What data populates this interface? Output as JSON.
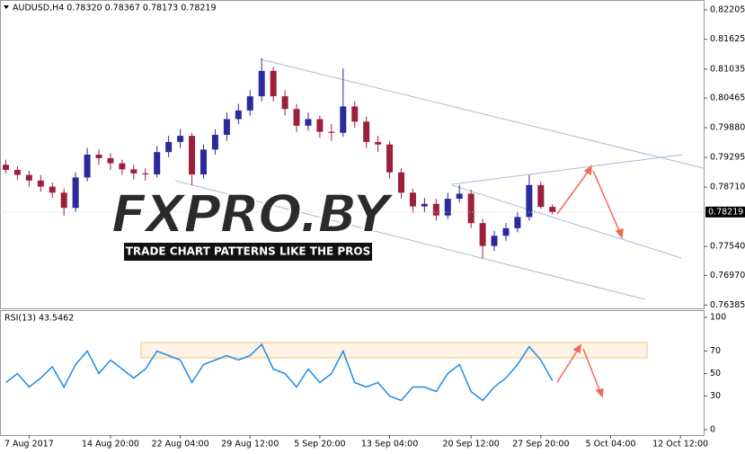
{
  "chart_data": [
    {
      "type": "candlestick",
      "title": "AUDUSD,H4  0.78320 0.78367 0.78173 0.78219",
      "xlim": [
        -0.5,
        60
      ],
      "ylim": [
        0.7632,
        0.8238
      ],
      "yticks": [
        0.82205,
        0.81625,
        0.81035,
        0.80465,
        {
          "value": 0.7988,
          "label": "0.79880"
        },
        0.79295,
        {
          "value": 0.7871,
          "label": "0.78710"
        },
        {
          "value": 0.7754,
          "label": "0.77540"
        },
        {
          "value": 0.7697,
          "label": "0.76970"
        },
        0.76385
      ],
      "open": [
        0.7915,
        0.7905,
        0.7895,
        0.7884,
        0.7872,
        0.786,
        0.783,
        0.789,
        0.7935,
        0.7928,
        0.7918,
        0.7906,
        0.7898,
        0.7896,
        0.794,
        0.796,
        0.7972,
        0.7896,
        0.7945,
        0.7974,
        0.8005,
        0.8022,
        0.805,
        0.81,
        0.805,
        0.8025,
        0.7992,
        0.8005,
        0.798,
        0.7978,
        0.803,
        0.8,
        0.796,
        0.7955,
        0.79,
        0.786,
        0.7833,
        0.7838,
        0.7815,
        0.7848,
        0.7858,
        0.78,
        0.7755,
        0.7775,
        0.779,
        0.7812,
        0.7875,
        0.7832
      ],
      "high": [
        0.7925,
        0.7912,
        0.7903,
        0.7895,
        0.788,
        0.7868,
        0.79,
        0.7948,
        0.7945,
        0.7938,
        0.7925,
        0.7915,
        0.7908,
        0.7952,
        0.7972,
        0.7985,
        0.7978,
        0.7955,
        0.7985,
        0.8018,
        0.8035,
        0.8062,
        0.8125,
        0.8108,
        0.8062,
        0.8035,
        0.8018,
        0.8012,
        0.7995,
        0.8105,
        0.804,
        0.801,
        0.7972,
        0.7962,
        0.7908,
        0.7868,
        0.785,
        0.7848,
        0.786,
        0.7875,
        0.7866,
        0.7808,
        0.7785,
        0.78,
        0.7822,
        0.7895,
        0.7882,
        0.78367
      ],
      "low": [
        0.7898,
        0.7885,
        0.7872,
        0.7862,
        0.785,
        0.7815,
        0.7822,
        0.7882,
        0.7915,
        0.7905,
        0.7895,
        0.7886,
        0.7884,
        0.789,
        0.793,
        0.7948,
        0.7875,
        0.7888,
        0.7935,
        0.7962,
        0.7995,
        0.8012,
        0.804,
        0.804,
        0.8012,
        0.798,
        0.7982,
        0.7968,
        0.7962,
        0.797,
        0.7988,
        0.7948,
        0.794,
        0.7888,
        0.7848,
        0.782,
        0.7822,
        0.7805,
        0.7808,
        0.784,
        0.779,
        0.773,
        0.7745,
        0.7765,
        0.7782,
        0.7805,
        0.7828,
        0.78173
      ],
      "close": [
        0.7905,
        0.7895,
        0.7884,
        0.7872,
        0.786,
        0.783,
        0.789,
        0.7935,
        0.7928,
        0.7918,
        0.7906,
        0.7898,
        0.7896,
        0.794,
        0.796,
        0.7972,
        0.7896,
        0.7945,
        0.7974,
        0.8005,
        0.8022,
        0.805,
        0.81,
        0.805,
        0.8025,
        0.7992,
        0.8005,
        0.798,
        0.7978,
        0.803,
        0.8,
        0.796,
        0.7955,
        0.79,
        0.786,
        0.7833,
        0.7838,
        0.7815,
        0.7848,
        0.7858,
        0.78,
        0.7755,
        0.7775,
        0.779,
        0.7812,
        0.7875,
        0.7832,
        0.78219
      ],
      "up_color": "#2a2a9c",
      "down_color": "#9c1f3c",
      "last_price": {
        "value": 0.78219,
        "label": "0.78219"
      },
      "watermark": {
        "title": "FXPRO.BY",
        "subtitle": "TRADE CHART PATTERNS LIKE THE PROS"
      }
    },
    {
      "type": "line",
      "title": "RSI(13) 43.5462",
      "xlim": [
        -0.5,
        60
      ],
      "ylim": [
        -4.8,
        106.4
      ],
      "yticks": [
        100,
        70,
        50,
        30,
        0
      ],
      "values": [
        42,
        50,
        38,
        46,
        56,
        38,
        58,
        70,
        50,
        62,
        54,
        46,
        54,
        70,
        66,
        62,
        42,
        58,
        62,
        66,
        62,
        66,
        76,
        54,
        50,
        38,
        54,
        42,
        50,
        70,
        42,
        38,
        42,
        30,
        26,
        38,
        38,
        34,
        50,
        58,
        34,
        26,
        38,
        46,
        58,
        74,
        62,
        43.5462
      ],
      "color": "#1e8ce6",
      "xticks": [
        {
          "value": 2,
          "label": "7 Aug 2017"
        },
        {
          "value": 9,
          "label": "14 Aug 20:00"
        },
        {
          "value": 15,
          "label": "22 Aug 04:00"
        },
        {
          "value": 21,
          "label": "29 Aug 12:00"
        },
        {
          "value": 27,
          "label": "5 Sep 20:00"
        },
        {
          "value": 33,
          "label": "13 Sep 04:00"
        },
        {
          "value": 40,
          "label": "20 Sep 12:00"
        },
        {
          "value": 46,
          "label": "27 Sep 20:00"
        },
        {
          "value": 52,
          "label": "5 Oct 04:00"
        },
        {
          "value": 58,
          "label": "12 Oct 12:00"
        }
      ]
    }
  ]
}
